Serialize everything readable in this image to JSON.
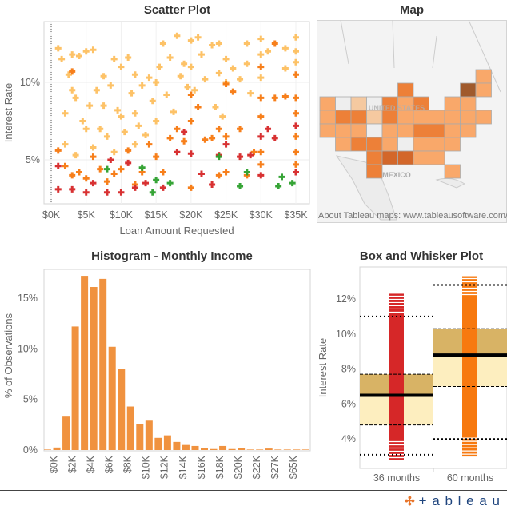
{
  "dashboard": {
    "scatter_title": "Scatter Plot",
    "map_title": "Map",
    "histogram_title": "Histogram - Monthly Income",
    "box_title": "Box and Whisker Plot",
    "logo_text": "+ableau"
  },
  "map": {
    "labels": {
      "country_us": "UNITED STATES",
      "country_mx": "MEXICO"
    },
    "attribution": "About Tableau maps: www.tableausoftware.com/m",
    "level_colors": [
      "#eeeeee",
      "#f5c9a0",
      "#f9a86a",
      "#ed8038",
      "#d3672a",
      "#a05a2c"
    ],
    "states": [
      {
        "id": "ME",
        "level": 2
      },
      {
        "id": "WI",
        "level": 3
      },
      {
        "id": "VT",
        "level": 5
      },
      {
        "id": "NH",
        "level": 2
      },
      {
        "id": "WA",
        "level": 2
      },
      {
        "id": "ID",
        "level": 0
      },
      {
        "id": "MT",
        "level": 1
      },
      {
        "id": "ND",
        "level": 0
      },
      {
        "id": "MN",
        "level": 3
      },
      {
        "id": "IL",
        "level": 2
      },
      {
        "id": "MI",
        "level": 3
      },
      {
        "id": "NY",
        "level": 2
      },
      {
        "id": "MA",
        "level": 2
      },
      {
        "id": "OR",
        "level": 2
      },
      {
        "id": "NV",
        "level": 3
      },
      {
        "id": "WY",
        "level": 3
      },
      {
        "id": "SD",
        "level": 1
      },
      {
        "id": "IA",
        "level": 3
      },
      {
        "id": "IN",
        "level": 2
      },
      {
        "id": "OH",
        "level": 2
      },
      {
        "id": "PA",
        "level": 2
      },
      {
        "id": "NJ",
        "level": 2
      },
      {
        "id": "CT",
        "level": 2
      },
      {
        "id": "RI",
        "level": 2
      },
      {
        "id": "CA",
        "level": 2
      },
      {
        "id": "UT",
        "level": 2
      },
      {
        "id": "CO",
        "level": 2
      },
      {
        "id": "NE",
        "level": 0
      },
      {
        "id": "MO",
        "level": 2
      },
      {
        "id": "KY",
        "level": 2
      },
      {
        "id": "WV",
        "level": 3
      },
      {
        "id": "VA",
        "level": 3
      },
      {
        "id": "MD",
        "level": 2
      },
      {
        "id": "DE",
        "level": 2
      },
      {
        "id": "AZ",
        "level": 2
      },
      {
        "id": "NM",
        "level": 3
      },
      {
        "id": "KS",
        "level": 3
      },
      {
        "id": "AR",
        "level": 2
      },
      {
        "id": "TN",
        "level": 0
      },
      {
        "id": "NC",
        "level": 2
      },
      {
        "id": "SC",
        "level": 2
      },
      {
        "id": "DC",
        "level": 2
      },
      {
        "id": "OK",
        "level": 3
      },
      {
        "id": "LA",
        "level": 4
      },
      {
        "id": "MS",
        "level": 4
      },
      {
        "id": "AL",
        "level": 2
      },
      {
        "id": "GA",
        "level": 2
      },
      {
        "id": "TX",
        "level": 3
      },
      {
        "id": "FL",
        "level": 2
      }
    ]
  },
  "chart_data": [
    {
      "type": "scatter",
      "title": "Scatter Plot",
      "xlabel": "Loan Amount Requested",
      "ylabel": "Interest Rate",
      "xlim": [
        0,
        36000
      ],
      "ylim": [
        2.5,
        13.8
      ],
      "x_ticks": [
        "$0K",
        "$5K",
        "$10K",
        "$15K",
        "$20K",
        "$25K",
        "$30K",
        "$35K"
      ],
      "x_tick_values": [
        0,
        5000,
        10000,
        15000,
        20000,
        25000,
        30000,
        35000
      ],
      "y_ticks": [
        "5%",
        "10%"
      ],
      "y_tick_values": [
        5,
        10
      ],
      "marker": "plus",
      "colors": [
        "#fdbf5f",
        "#f7790f",
        "#d62728",
        "#2ca02c"
      ],
      "points": [
        [
          1000,
          12.2,
          0
        ],
        [
          1500,
          11.5,
          0
        ],
        [
          2000,
          8,
          0
        ],
        [
          2500,
          10.5,
          0
        ],
        [
          3000,
          11.8,
          0
        ],
        [
          3500,
          9,
          0
        ],
        [
          4000,
          11.7,
          0
        ],
        [
          4500,
          7.5,
          0
        ],
        [
          5000,
          12,
          0
        ],
        [
          5500,
          8.5,
          0
        ],
        [
          6000,
          12.1,
          0
        ],
        [
          6500,
          9.5,
          0
        ],
        [
          7000,
          7,
          0
        ],
        [
          7500,
          10.4,
          0
        ],
        [
          8000,
          6.5,
          0
        ],
        [
          8500,
          9.8,
          0
        ],
        [
          9000,
          11.5,
          0
        ],
        [
          9500,
          8.2,
          0
        ],
        [
          10000,
          11,
          0
        ],
        [
          10000,
          7.8,
          0
        ],
        [
          10500,
          6.8,
          0
        ],
        [
          11000,
          11.6,
          0
        ],
        [
          11500,
          9.3,
          0
        ],
        [
          12000,
          10.5,
          0
        ],
        [
          12000,
          8,
          0
        ],
        [
          12500,
          7.2,
          0
        ],
        [
          13000,
          9.8,
          0
        ],
        [
          13500,
          6.6,
          0
        ],
        [
          14000,
          10.3,
          0
        ],
        [
          14500,
          8.8,
          0
        ],
        [
          15000,
          10,
          0
        ],
        [
          15000,
          7.5,
          0
        ],
        [
          15500,
          11,
          0
        ],
        [
          16000,
          12.5,
          0
        ],
        [
          16500,
          9.2,
          0
        ],
        [
          17000,
          11.6,
          0
        ],
        [
          17500,
          8.1,
          0
        ],
        [
          18000,
          13,
          0
        ],
        [
          18500,
          10.4,
          0
        ],
        [
          19000,
          11.2,
          0
        ],
        [
          19500,
          9.7,
          0
        ],
        [
          20000,
          12.7,
          0
        ],
        [
          20000,
          11,
          0
        ],
        [
          20500,
          9.5,
          0
        ],
        [
          21000,
          12.9,
          0
        ],
        [
          21500,
          11.8,
          0
        ],
        [
          22000,
          10.2,
          0
        ],
        [
          23000,
          12.4,
          0
        ],
        [
          23500,
          8.4,
          0
        ],
        [
          24000,
          12.5,
          0
        ],
        [
          24000,
          10.6,
          0
        ],
        [
          24500,
          7.8,
          0
        ],
        [
          25000,
          11.5,
          0
        ],
        [
          25000,
          10,
          0
        ],
        [
          26000,
          10.9,
          0
        ],
        [
          27000,
          10.2,
          0
        ],
        [
          28000,
          12.5,
          0
        ],
        [
          28000,
          11.2,
          0
        ],
        [
          28500,
          9.3,
          0
        ],
        [
          30000,
          12.8,
          0
        ],
        [
          30000,
          11.8,
          0
        ],
        [
          30000,
          10.3,
          0
        ],
        [
          31000,
          12,
          0
        ],
        [
          33500,
          12.2,
          0
        ],
        [
          33500,
          10.9,
          0
        ],
        [
          35000,
          12.9,
          0
        ],
        [
          35000,
          12,
          0
        ],
        [
          35000,
          11.3,
          0
        ],
        [
          2000,
          6,
          0
        ],
        [
          3500,
          5.3,
          0
        ],
        [
          6000,
          5.8,
          0
        ],
        [
          9000,
          5.5,
          0
        ],
        [
          12000,
          6,
          0
        ],
        [
          5000,
          7,
          0
        ],
        [
          7500,
          8.5,
          0
        ],
        [
          3000,
          9.5,
          0
        ],
        [
          1000,
          5.6,
          1
        ],
        [
          2000,
          4.6,
          1
        ],
        [
          3000,
          4,
          1
        ],
        [
          3000,
          10.7,
          1
        ],
        [
          4000,
          4.2,
          1
        ],
        [
          5000,
          3.8,
          1
        ],
        [
          6000,
          5.2,
          1
        ],
        [
          7000,
          4.4,
          1
        ],
        [
          8000,
          3.6,
          1
        ],
        [
          9000,
          4.1,
          1
        ],
        [
          10000,
          4.4,
          1
        ],
        [
          11000,
          5.6,
          1
        ],
        [
          12000,
          3.4,
          1
        ],
        [
          13000,
          4.2,
          1
        ],
        [
          14000,
          6,
          1
        ],
        [
          15000,
          5.2,
          1
        ],
        [
          16000,
          4.2,
          1
        ],
        [
          17000,
          6.4,
          1
        ],
        [
          18000,
          7,
          1
        ],
        [
          19000,
          6.2,
          1
        ],
        [
          20000,
          9.2,
          1
        ],
        [
          20000,
          7.5,
          1
        ],
        [
          20000,
          3.2,
          1
        ],
        [
          21000,
          8.4,
          1
        ],
        [
          22000,
          6.3,
          1
        ],
        [
          23000,
          6.4,
          1
        ],
        [
          24000,
          7,
          1
        ],
        [
          24000,
          4,
          1
        ],
        [
          25000,
          9.9,
          1
        ],
        [
          25000,
          6.5,
          1
        ],
        [
          25000,
          4.2,
          1
        ],
        [
          26000,
          9.4,
          1
        ],
        [
          27000,
          7,
          1
        ],
        [
          28000,
          4,
          1
        ],
        [
          29000,
          5.5,
          1
        ],
        [
          30000,
          11,
          1
        ],
        [
          30000,
          9,
          1
        ],
        [
          30000,
          7.8,
          1
        ],
        [
          30000,
          5.5,
          1
        ],
        [
          30000,
          4.7,
          1
        ],
        [
          32000,
          12.5,
          1
        ],
        [
          32000,
          9,
          1
        ],
        [
          33500,
          9.1,
          1
        ],
        [
          35000,
          10.5,
          1
        ],
        [
          35000,
          9,
          1
        ],
        [
          35000,
          8,
          1
        ],
        [
          35000,
          6.5,
          1
        ],
        [
          35000,
          5.5,
          1
        ],
        [
          35000,
          4.7,
          1
        ],
        [
          1000,
          4.6,
          2
        ],
        [
          1000,
          3.1,
          2
        ],
        [
          3000,
          3.1,
          2
        ],
        [
          5000,
          2.9,
          2
        ],
        [
          6000,
          3.5,
          2
        ],
        [
          8000,
          2.9,
          2
        ],
        [
          8500,
          5,
          2
        ],
        [
          10000,
          2.9,
          2
        ],
        [
          11000,
          4.8,
          2
        ],
        [
          12000,
          3.2,
          2
        ],
        [
          13500,
          3.5,
          2
        ],
        [
          16000,
          3.2,
          2
        ],
        [
          18000,
          5.5,
          2
        ],
        [
          19000,
          6.8,
          2
        ],
        [
          20000,
          5.4,
          2
        ],
        [
          21500,
          4.1,
          2
        ],
        [
          23000,
          3.4,
          2
        ],
        [
          24000,
          5.3,
          2
        ],
        [
          25000,
          6,
          2
        ],
        [
          27000,
          5.2,
          2
        ],
        [
          28500,
          5.3,
          2
        ],
        [
          30000,
          6.5,
          2
        ],
        [
          30000,
          4,
          2
        ],
        [
          31000,
          7,
          2
        ],
        [
          32000,
          6.4,
          2
        ],
        [
          35000,
          7.2,
          2
        ],
        [
          35000,
          4.2,
          2
        ],
        [
          8000,
          4.4,
          3
        ],
        [
          13000,
          4.5,
          3
        ],
        [
          14500,
          2.9,
          3
        ],
        [
          15000,
          3.7,
          3
        ],
        [
          17000,
          3.5,
          3
        ],
        [
          24000,
          5.2,
          3
        ],
        [
          27000,
          3.3,
          3
        ],
        [
          28000,
          4.2,
          3
        ],
        [
          32500,
          3.3,
          3
        ],
        [
          33000,
          3.9,
          3
        ],
        [
          34500,
          3.5,
          3
        ]
      ]
    },
    {
      "type": "bar",
      "title": "Histogram - Monthly Income",
      "xlabel": "",
      "ylabel": "% of Observations",
      "ylim": [
        0,
        18
      ],
      "y_ticks": [
        "0%",
        "5%",
        "10%",
        "15%"
      ],
      "y_tick_values": [
        0,
        5,
        10,
        15
      ],
      "x_tick_labels": [
        "$0K",
        "$2K",
        "$4K",
        "$6K",
        "$8K",
        "$10K",
        "$12K",
        "$14K",
        "$16K",
        "$18K",
        "$20K",
        "$22K",
        "$27K",
        "$65K"
      ],
      "color": "#f0923f",
      "values": [
        0.05,
        0.25,
        3.3,
        12.2,
        17.2,
        16.1,
        16.9,
        10.2,
        8.0,
        4.3,
        2.6,
        2.9,
        1.2,
        1.45,
        0.8,
        0.5,
        0.4,
        0.2,
        0.1,
        0.4,
        0.1,
        0.2,
        0.05,
        0.05,
        0.15,
        0.05,
        0.05,
        0.05,
        0.05
      ]
    },
    {
      "type": "box",
      "title": "Box and Whisker Plot",
      "ylabel": "Interest Rate",
      "ylim": [
        2.4,
        13.7
      ],
      "y_ticks": [
        "4%",
        "6%",
        "8%",
        "10%",
        "12%"
      ],
      "y_tick_values": [
        4,
        6,
        8,
        10,
        12
      ],
      "box_colors": {
        "upper": "#d8b365",
        "lower": "#fdeebf"
      },
      "categories": [
        {
          "label": "36 months",
          "color": "#d62728",
          "min": 2.8,
          "whisker_low": 3.1,
          "q1": 4.8,
          "median": 6.5,
          "q3": 7.7,
          "whisker_high": 11.0,
          "max": 12.3
        },
        {
          "label": "60 months",
          "color": "#f7790f",
          "min": 3.0,
          "whisker_low": 4.0,
          "q1": 7.0,
          "median": 8.8,
          "q3": 10.3,
          "whisker_high": 12.8,
          "max": 13.3
        }
      ]
    }
  ]
}
